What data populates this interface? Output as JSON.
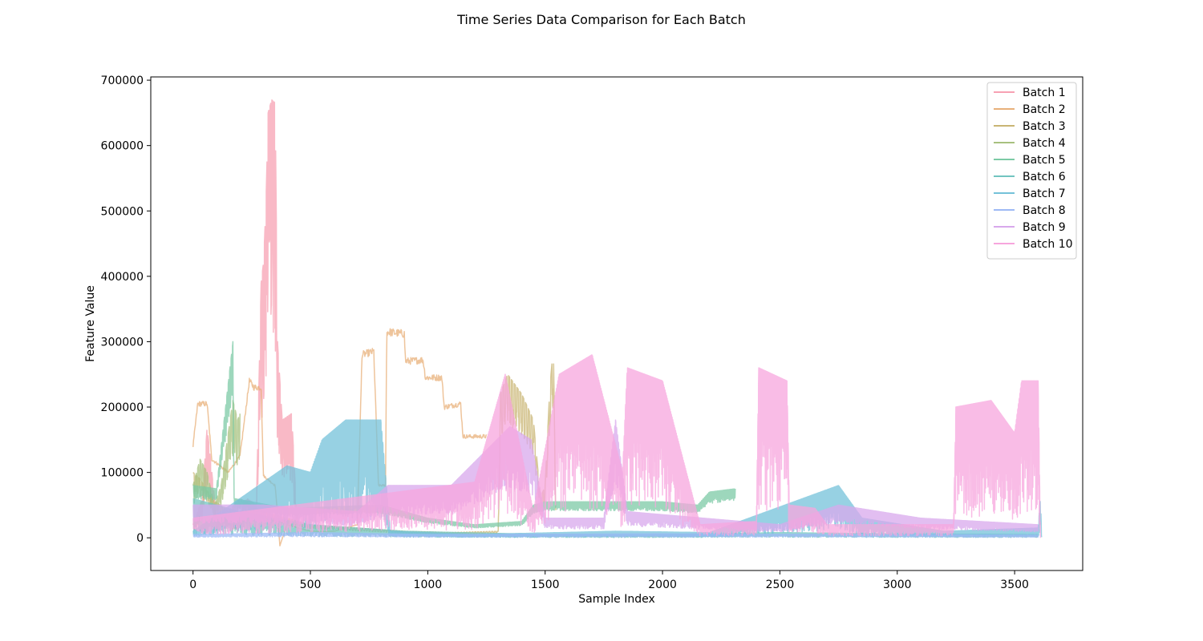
{
  "chart_data": {
    "type": "line",
    "title": "Time Series Data Comparison for Each Batch",
    "xlabel": "Sample Index",
    "ylabel": "Feature Value",
    "xlim": [
      -180,
      3790
    ],
    "ylim": [
      -50000,
      705000
    ],
    "xticks": [
      0,
      500,
      1000,
      1500,
      2000,
      2500,
      3000,
      3500
    ],
    "yticks": [
      0,
      100000,
      200000,
      300000,
      400000,
      500000,
      600000,
      700000
    ],
    "grid": false,
    "legend_position": "top-right",
    "series": [
      {
        "name": "Batch 1",
        "color": "#f7a1b3",
        "length": 445,
        "keyframes": [
          [
            0,
            20000
          ],
          [
            40,
            60000
          ],
          [
            60,
            170000
          ],
          [
            100,
            30000
          ],
          [
            140,
            40000
          ],
          [
            180,
            25000
          ],
          [
            230,
            60000
          ],
          [
            270,
            50000
          ],
          [
            290,
            390000
          ],
          [
            300,
            420000
          ],
          [
            310,
            500000
          ],
          [
            320,
            650000
          ],
          [
            335,
            670000
          ],
          [
            350,
            665000
          ],
          [
            360,
            300000
          ],
          [
            380,
            180000
          ],
          [
            420,
            190000
          ],
          [
            445,
            15000
          ]
        ],
        "noise": 0.55,
        "osc_period": 8
      },
      {
        "name": "Batch 2",
        "color": "#e8b07a",
        "length": 1250,
        "keyframes": [
          [
            0,
            140000
          ],
          [
            20,
            205000
          ],
          [
            60,
            205000
          ],
          [
            80,
            120000
          ],
          [
            150,
            100000
          ],
          [
            200,
            125000
          ],
          [
            240,
            240000
          ],
          [
            260,
            230000
          ],
          [
            290,
            230000
          ],
          [
            300,
            95000
          ],
          [
            350,
            80000
          ],
          [
            370,
            -12000
          ],
          [
            400,
            20000
          ],
          [
            500,
            10000
          ],
          [
            600,
            10000
          ],
          [
            700,
            20000
          ],
          [
            720,
            280000
          ],
          [
            770,
            285000
          ],
          [
            790,
            80000
          ],
          [
            820,
            80000
          ],
          [
            825,
            315000
          ],
          [
            900,
            312000
          ],
          [
            905,
            270000
          ],
          [
            980,
            272000
          ],
          [
            990,
            245000
          ],
          [
            1060,
            245000
          ],
          [
            1070,
            200000
          ],
          [
            1140,
            205000
          ],
          [
            1150,
            155000
          ],
          [
            1250,
            155000
          ]
        ],
        "noise": 0.04,
        "osc_period": 0
      },
      {
        "name": "Batch 3",
        "color": "#c9b574",
        "length": 1545,
        "keyframes": [
          [
            0,
            100000
          ],
          [
            30,
            90000
          ],
          [
            80,
            60000
          ],
          [
            150,
            40000
          ],
          [
            200,
            60000
          ],
          [
            300,
            40000
          ],
          [
            400,
            30000
          ],
          [
            500,
            20000
          ],
          [
            700,
            15000
          ],
          [
            900,
            10000
          ],
          [
            1100,
            8000
          ],
          [
            1300,
            10000
          ],
          [
            1310,
            220000
          ],
          [
            1340,
            250000
          ],
          [
            1400,
            220000
          ],
          [
            1450,
            180000
          ],
          [
            1480,
            60000
          ],
          [
            1500,
            80000
          ],
          [
            1520,
            230000
          ],
          [
            1535,
            290000
          ],
          [
            1545,
            50000
          ]
        ],
        "noise": 0.3,
        "osc_period": 12
      },
      {
        "name": "Batch 4",
        "color": "#a7c17f",
        "length": 200,
        "keyframes": [
          [
            0,
            80000
          ],
          [
            30,
            120000
          ],
          [
            60,
            100000
          ],
          [
            90,
            50000
          ],
          [
            120,
            80000
          ],
          [
            150,
            160000
          ],
          [
            170,
            210000
          ],
          [
            190,
            180000
          ],
          [
            200,
            190000
          ]
        ],
        "noise": 0.4,
        "osc_period": 10
      },
      {
        "name": "Batch 5",
        "color": "#7ccaa5",
        "length": 2310,
        "keyframes": [
          [
            0,
            80000
          ],
          [
            100,
            75000
          ],
          [
            170,
            300000
          ],
          [
            175,
            60000
          ],
          [
            400,
            45000
          ],
          [
            800,
            50000
          ],
          [
            1000,
            30000
          ],
          [
            1200,
            20000
          ],
          [
            1400,
            25000
          ],
          [
            1450,
            50000
          ],
          [
            1500,
            55000
          ],
          [
            1800,
            55000
          ],
          [
            2000,
            55000
          ],
          [
            2150,
            50000
          ],
          [
            2200,
            70000
          ],
          [
            2310,
            75000
          ]
        ],
        "noise": 0.25,
        "osc_period": 6
      },
      {
        "name": "Batch 6",
        "color": "#72c5c0",
        "length": 3600,
        "keyframes": [
          [
            0,
            60000
          ],
          [
            200,
            40000
          ],
          [
            500,
            20000
          ],
          [
            900,
            10000
          ],
          [
            1500,
            5000
          ],
          [
            2000,
            5000
          ],
          [
            2500,
            8000
          ],
          [
            3000,
            6000
          ],
          [
            3600,
            5000
          ]
        ],
        "noise": 0.9,
        "osc_period": 5
      },
      {
        "name": "Batch 7",
        "color": "#74c2d9",
        "length": 3615,
        "keyframes": [
          [
            0,
            10000
          ],
          [
            400,
            110000
          ],
          [
            500,
            100000
          ],
          [
            550,
            150000
          ],
          [
            650,
            180000
          ],
          [
            800,
            180000
          ],
          [
            840,
            10000
          ],
          [
            1200,
            5000
          ],
          [
            1800,
            10000
          ],
          [
            2200,
            8000
          ],
          [
            2750,
            80000
          ],
          [
            2850,
            30000
          ],
          [
            3200,
            10000
          ],
          [
            3600,
            15000
          ],
          [
            3610,
            60000
          ],
          [
            3615,
            2000
          ]
        ],
        "noise": 0.85,
        "osc_period": 4
      },
      {
        "name": "Batch 8",
        "color": "#9eb9f5",
        "length": 3600,
        "keyframes": [
          [
            0,
            5000
          ],
          [
            500,
            8000
          ],
          [
            1000,
            5000
          ],
          [
            2000,
            6000
          ],
          [
            3000,
            5000
          ],
          [
            3600,
            4000
          ]
        ],
        "noise": 0.8,
        "osc_period": 5
      },
      {
        "name": "Batch 9",
        "color": "#d8a8ec",
        "length": 3600,
        "keyframes": [
          [
            0,
            50000
          ],
          [
            300,
            50000
          ],
          [
            700,
            40000
          ],
          [
            830,
            80000
          ],
          [
            1100,
            80000
          ],
          [
            1350,
            170000
          ],
          [
            1440,
            150000
          ],
          [
            1500,
            30000
          ],
          [
            1750,
            30000
          ],
          [
            1800,
            180000
          ],
          [
            1850,
            40000
          ],
          [
            2500,
            20000
          ],
          [
            2750,
            50000
          ],
          [
            3100,
            30000
          ],
          [
            3600,
            20000
          ]
        ],
        "noise": 0.55,
        "osc_period": 4
      },
      {
        "name": "Batch 10",
        "color": "#f7a6dd",
        "length": 3610,
        "keyframes": [
          [
            0,
            30000
          ],
          [
            1200,
            85000
          ],
          [
            1330,
            250000
          ],
          [
            1450,
            40000
          ],
          [
            1560,
            250000
          ],
          [
            1700,
            280000
          ],
          [
            1830,
            100000
          ],
          [
            1850,
            260000
          ],
          [
            2000,
            240000
          ],
          [
            2160,
            20000
          ],
          [
            2400,
            25000
          ],
          [
            2410,
            260000
          ],
          [
            2530,
            240000
          ],
          [
            2540,
            50000
          ],
          [
            2650,
            45000
          ],
          [
            2700,
            20000
          ],
          [
            3240,
            20000
          ],
          [
            3250,
            200000
          ],
          [
            3400,
            210000
          ],
          [
            3500,
            160000
          ],
          [
            3530,
            240000
          ],
          [
            3600,
            240000
          ],
          [
            3610,
            0
          ]
        ],
        "noise": 0.85,
        "osc_period": 3
      }
    ]
  }
}
